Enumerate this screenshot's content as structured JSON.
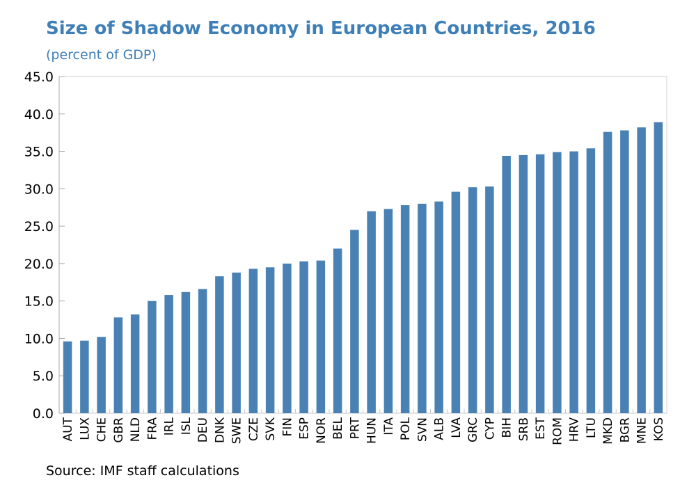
{
  "chart_data": {
    "type": "bar",
    "title": "Size of Shadow Economy in European Countries, 2016",
    "subtitle": "(percent of GDP)",
    "source": "Source: IMF staff calculations",
    "xlabel": "",
    "ylabel": "",
    "ylim": [
      0,
      45
    ],
    "yticks": [
      "0.0",
      "5.0",
      "10.0",
      "15.0",
      "20.0",
      "25.0",
      "30.0",
      "35.0",
      "40.0",
      "45.0"
    ],
    "grid": false,
    "bar_color": "#4a81b4",
    "categories": [
      "AUT",
      "LUX",
      "CHE",
      "GBR",
      "NLD",
      "FRA",
      "IRL",
      "ISL",
      "DEU",
      "DNK",
      "SWE",
      "CZE",
      "SVK",
      "FIN",
      "ESP",
      "NOR",
      "BEL",
      "PRT",
      "HUN",
      "ITA",
      "POL",
      "SVN",
      "ALB",
      "LVA",
      "GRC",
      "CYP",
      "BIH",
      "SRB",
      "EST",
      "ROM",
      "HRV",
      "LTU",
      "MKD",
      "BGR",
      "MNE",
      "KOS"
    ],
    "values": [
      9.6,
      9.7,
      10.2,
      12.8,
      13.2,
      15.0,
      15.8,
      16.2,
      16.6,
      18.3,
      18.8,
      19.3,
      19.5,
      20.0,
      20.3,
      20.4,
      22.0,
      24.5,
      27.0,
      27.3,
      27.8,
      28.0,
      28.3,
      29.6,
      30.2,
      30.3,
      34.4,
      34.5,
      34.6,
      34.9,
      35.0,
      35.4,
      37.6,
      37.8,
      38.2,
      38.9
    ]
  }
}
